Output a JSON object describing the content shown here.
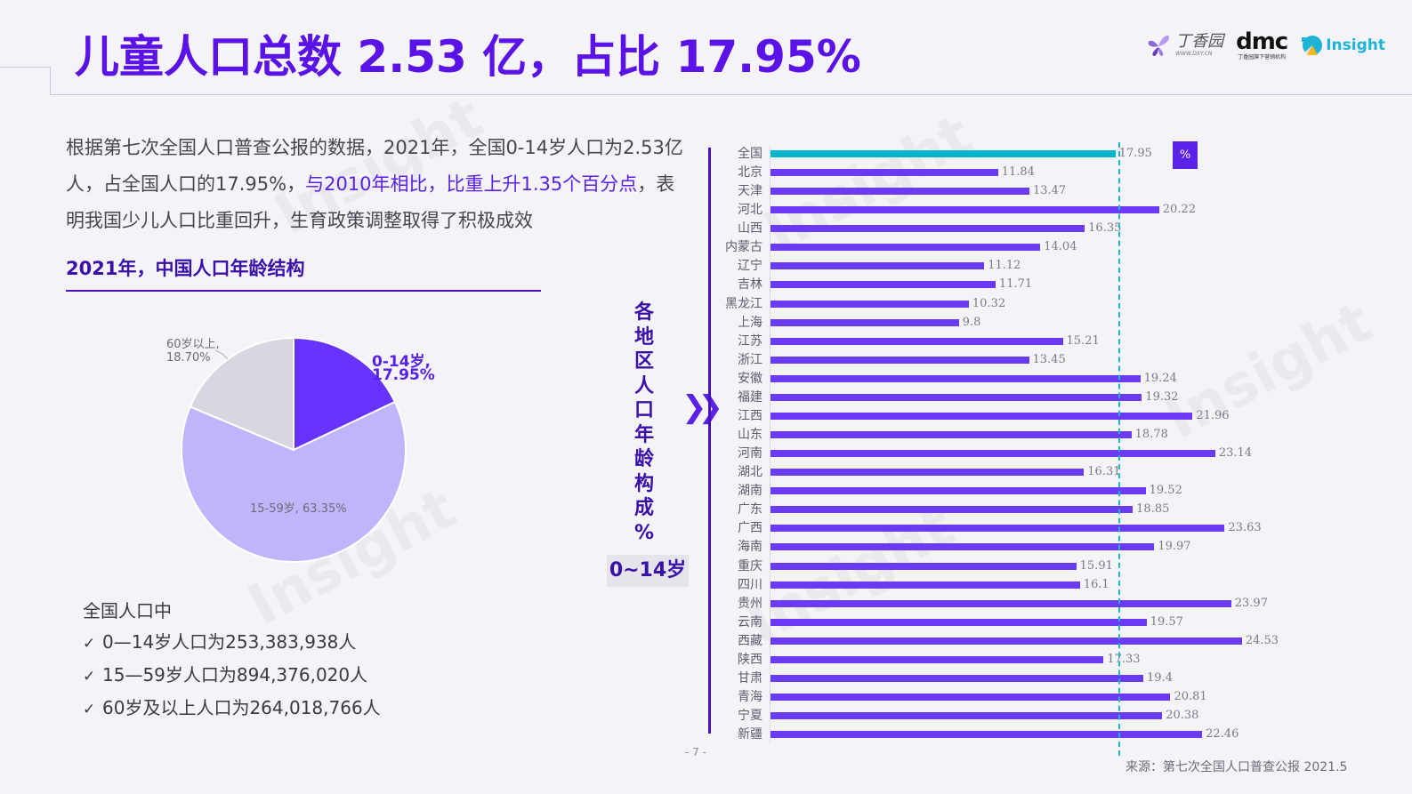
{
  "header": {
    "title": "儿童人口总数 2.53 亿，占比 17.95%",
    "logos": {
      "dxy_cn": "丁香园",
      "dxy_url": "WWW.DXY.CN",
      "dmc_brand": "dmc",
      "dmc_sub": "丁香园旗下营销机构",
      "insight": "Insight"
    }
  },
  "intro": {
    "part1": "根据第七次全国人口普查公报的数据，2021年，全国0-14岁人口为2.53亿人，占全国人口的17.95%，",
    "highlight": "与2010年相比，比重上升1.35个百分点",
    "part2": "，表明我国少儿人口比重回升，生育政策调整取得了积极成效"
  },
  "pie_section": {
    "title": "2021年，中国人口年龄结构"
  },
  "summary": {
    "heading": "全国人口中",
    "check_glyph": "✓",
    "items": [
      "0—14岁人口为253,383,938人",
      "15—59岁人口为894,376,020人",
      "60岁及以上人口为264,018,766人"
    ]
  },
  "side": {
    "title_chars": [
      "各",
      "地",
      "区",
      "人",
      "口",
      "年",
      "龄",
      "构",
      "成",
      "%"
    ],
    "tag": "0~14岁",
    "chevron": "❯❯"
  },
  "bar_section": {
    "unit": "%",
    "reference_value": 17.95
  },
  "footer": {
    "page": "- 7 -",
    "source": "来源：第七次全国人口普查公报 2021.5"
  },
  "watermark": "Insight",
  "colors": {
    "accent": "#5a12e6",
    "bar": "#6a3af5",
    "total_bar": "#04b3c9",
    "pie_0_14": "#6633ff",
    "pie_15_59": "#bfb5fb",
    "pie_60_plus": "#d8d6e0"
  },
  "chart_data": [
    {
      "type": "pie",
      "title": "2021年，中国人口年龄结构",
      "categories": [
        "0-14岁",
        "15-59岁",
        "60岁以上"
      ],
      "values": [
        17.95,
        63.35,
        18.7
      ],
      "labels": [
        "0-14岁, 17.95%",
        "15-59岁, 63.35%",
        "60岁以上,\n18.70%"
      ]
    },
    {
      "type": "bar",
      "orientation": "horizontal",
      "title": "各地区人口年龄构成% 0~14岁",
      "xlabel": "",
      "ylabel": "",
      "unit": "%",
      "reference_line": 17.95,
      "xlim": [
        0,
        25
      ],
      "grid": false,
      "categories": [
        "全国",
        "北京",
        "天津",
        "河北",
        "山西",
        "内蒙古",
        "辽宁",
        "吉林",
        "黑龙江",
        "上海",
        "江苏",
        "浙江",
        "安徽",
        "福建",
        "江西",
        "山东",
        "河南",
        "湖北",
        "湖南",
        "广东",
        "广西",
        "海南",
        "重庆",
        "四川",
        "贵州",
        "云南",
        "西藏",
        "陕西",
        "甘肃",
        "青海",
        "宁夏",
        "新疆"
      ],
      "values": [
        17.95,
        11.84,
        13.47,
        20.22,
        16.35,
        14.04,
        11.12,
        11.71,
        10.32,
        9.8,
        15.21,
        13.45,
        19.24,
        19.32,
        21.96,
        18.78,
        23.14,
        16.31,
        19.52,
        18.85,
        23.63,
        19.97,
        15.91,
        16.1,
        23.97,
        19.57,
        24.53,
        17.33,
        19.4,
        20.81,
        20.38,
        22.46
      ],
      "value_labels": [
        "17.95",
        "11.84",
        "13.47",
        "20.22",
        "16.35",
        "14.04",
        "11.12",
        "11.71",
        "10.32",
        "9.8",
        "15.21",
        "13.45",
        "19.24",
        "19.32",
        "21.96",
        "18.78",
        "23.14",
        "16.31",
        "19.52",
        "18.85",
        "23.63",
        "19.97",
        "15.91",
        "16.1",
        "23.97",
        "19.57",
        "24.53",
        "17.33",
        "19.4",
        "20.81",
        "20.38",
        "22.46"
      ]
    }
  ]
}
